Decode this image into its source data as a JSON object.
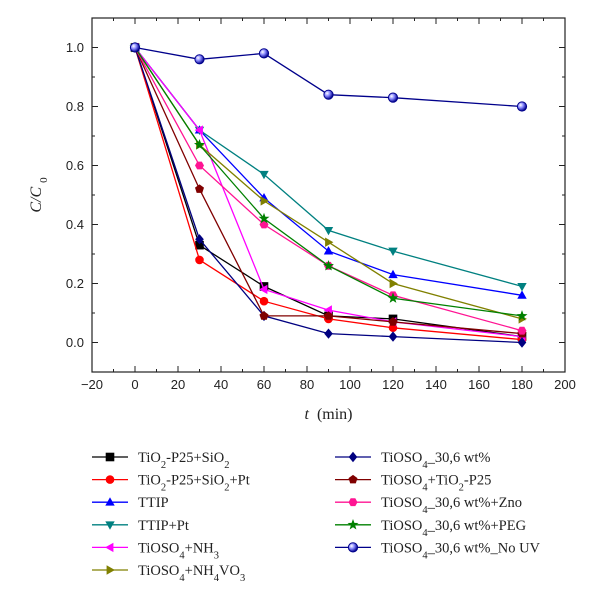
{
  "chart_data": {
    "type": "line",
    "xlabel": "t",
    "xlabel_unit": "(min)",
    "ylabel": "C/C",
    "ylabel_sub": "0",
    "xlim": [
      -20,
      200
    ],
    "ylim": [
      -0.1,
      1.1
    ],
    "x_ticks": [
      -20,
      0,
      20,
      40,
      60,
      80,
      100,
      120,
      140,
      160,
      180,
      200
    ],
    "x_tick_labels": [
      "−20",
      "0",
      "20",
      "40",
      "60",
      "80",
      "100",
      "120",
      "140",
      "160",
      "180",
      "200"
    ],
    "y_ticks": [
      0.0,
      0.2,
      0.4,
      0.6,
      0.8,
      1.0
    ],
    "y_tick_labels": [
      "0.0",
      "0.2",
      "0.4",
      "0.6",
      "0.8",
      "1.0"
    ],
    "grid": false,
    "legend_position": "bottom",
    "series": [
      {
        "name": "TiO2-P25+SiO2",
        "label_parts": [
          [
            "TiO",
            "n"
          ],
          [
            "2",
            "sub"
          ],
          [
            "-P25+SiO",
            "n"
          ],
          [
            "2",
            "sub"
          ]
        ],
        "color": "#000000",
        "marker": "square",
        "x": [
          0,
          30,
          60,
          90,
          120,
          180
        ],
        "y": [
          1.0,
          0.33,
          0.19,
          0.09,
          0.08,
          0.02
        ]
      },
      {
        "name": "TiO2-P25+SiO2+Pt",
        "label_parts": [
          [
            "TiO",
            "n"
          ],
          [
            "2",
            "sub"
          ],
          [
            "-P25+SiO",
            "n"
          ],
          [
            "2",
            "sub"
          ],
          [
            "+Pt",
            "n"
          ]
        ],
        "color": "#ff0000",
        "marker": "circle",
        "x": [
          0,
          30,
          60,
          90,
          120,
          180
        ],
        "y": [
          1.0,
          0.28,
          0.14,
          0.08,
          0.05,
          0.01
        ]
      },
      {
        "name": "TTIP",
        "label_parts": [
          [
            "TTIP",
            "n"
          ]
        ],
        "color": "#0000ff",
        "marker": "triangle-up",
        "x": [
          0,
          30,
          60,
          90,
          120,
          180
        ],
        "y": [
          1.0,
          0.72,
          0.49,
          0.31,
          0.23,
          0.16
        ]
      },
      {
        "name": "TTIP+Pt",
        "label_parts": [
          [
            "TTIP+Pt",
            "n"
          ]
        ],
        "color": "#008080",
        "marker": "triangle-down",
        "x": [
          0,
          30,
          60,
          90,
          120,
          180
        ],
        "y": [
          1.0,
          0.72,
          0.57,
          0.38,
          0.31,
          0.19
        ]
      },
      {
        "name": "TiOSO4+NH3",
        "label_parts": [
          [
            "TiOSO",
            "n"
          ],
          [
            "4",
            "sub"
          ],
          [
            "+NH",
            "n"
          ],
          [
            "3",
            "sub"
          ]
        ],
        "color": "#ff00ff",
        "marker": "triangle-left",
        "x": [
          0,
          30,
          60,
          90,
          120,
          180
        ],
        "y": [
          1.0,
          0.72,
          0.18,
          0.11,
          0.07,
          0.02
        ]
      },
      {
        "name": "TiOSO4+NH4VO3",
        "label_parts": [
          [
            "TiOSO",
            "n"
          ],
          [
            "4",
            "sub"
          ],
          [
            "+NH",
            "n"
          ],
          [
            "4",
            "sub"
          ],
          [
            "VO",
            "n"
          ],
          [
            "3",
            "sub"
          ]
        ],
        "color": "#808000",
        "marker": "triangle-right",
        "x": [
          0,
          30,
          60,
          90,
          120,
          180
        ],
        "y": [
          1.0,
          0.67,
          0.48,
          0.34,
          0.2,
          0.08
        ]
      },
      {
        "name": "TiOSO4_30,6 wt%",
        "label_parts": [
          [
            "TiOSO",
            "n"
          ],
          [
            "4",
            "sub"
          ],
          [
            "_30,6 wt%",
            "n"
          ]
        ],
        "color": "#000080",
        "marker": "diamond",
        "x": [
          0,
          30,
          60,
          90,
          120,
          180
        ],
        "y": [
          1.0,
          0.35,
          0.09,
          0.03,
          0.02,
          0.0
        ]
      },
      {
        "name": "TiOSO4+TiO2-P25",
        "label_parts": [
          [
            "TiOSO",
            "n"
          ],
          [
            "4",
            "sub"
          ],
          [
            "+TiO",
            "n"
          ],
          [
            "2",
            "sub"
          ],
          [
            "-P25",
            "n"
          ]
        ],
        "color": "#800000",
        "marker": "pentagon",
        "x": [
          0,
          30,
          60,
          90,
          120,
          180
        ],
        "y": [
          1.0,
          0.52,
          0.09,
          0.09,
          0.07,
          0.03
        ]
      },
      {
        "name": "TiOSO4_30,6 wt%+Zno",
        "label_parts": [
          [
            "TiOSO",
            "n"
          ],
          [
            "4",
            "sub"
          ],
          [
            "_30,6 wt%+Zno",
            "n"
          ]
        ],
        "color": "#ff1493",
        "marker": "hexagon",
        "x": [
          0,
          30,
          60,
          90,
          120,
          180
        ],
        "y": [
          1.0,
          0.6,
          0.4,
          0.26,
          0.16,
          0.04
        ]
      },
      {
        "name": "TiOSO4_30,6 wt%+PEG",
        "label_parts": [
          [
            "TiOSO",
            "n"
          ],
          [
            "4",
            "sub"
          ],
          [
            "_30,6 wt%+PEG",
            "n"
          ]
        ],
        "color": "#008000",
        "marker": "star",
        "x": [
          0,
          30,
          60,
          90,
          120,
          180
        ],
        "y": [
          1.0,
          0.67,
          0.42,
          0.26,
          0.15,
          0.09
        ]
      },
      {
        "name": "TiOSO4_30,6 wt%_No UV",
        "label_parts": [
          [
            "TiOSO",
            "n"
          ],
          [
            "4",
            "sub"
          ],
          [
            "_30,6 wt%_No UV",
            "n"
          ]
        ],
        "color": "#00008b",
        "marker": "sphere",
        "x": [
          0,
          30,
          60,
          90,
          120,
          180
        ],
        "y": [
          1.0,
          0.96,
          0.98,
          0.84,
          0.83,
          0.8
        ]
      }
    ]
  }
}
